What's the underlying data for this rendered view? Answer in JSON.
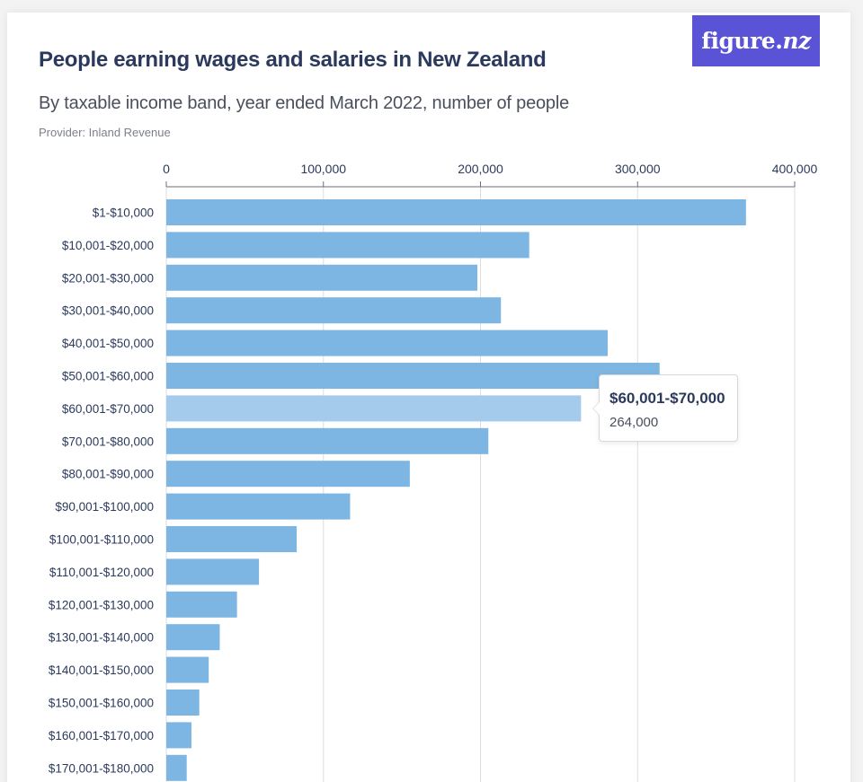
{
  "header": {
    "title": "People earning wages and salaries in New Zealand",
    "subtitle": "By taxable income band, year ended March 2022, number of people",
    "provider": "Provider: Inland Revenue"
  },
  "logo": {
    "text_main": "figure.",
    "text_italic": "nz"
  },
  "colors": {
    "bar": "#7db5e3",
    "bar_highlight": "#a5cbec",
    "axis": "#6b6f7a",
    "grid": "#dcdde1",
    "logo_bg": "#5a53d6",
    "text": "#2b3a5c"
  },
  "tooltip": {
    "category": "$60,001-$70,000",
    "value": "264,000"
  },
  "chart_data": {
    "type": "bar",
    "orientation": "horizontal",
    "title": "People earning wages and salaries in New Zealand",
    "subtitle": "By taxable income band, year ended March 2022, number of people",
    "xlim": [
      0,
      400000
    ],
    "ticks": [
      0,
      100000,
      200000,
      300000,
      400000
    ],
    "tick_labels": [
      "0",
      "100,000",
      "200,000",
      "300,000",
      "400,000"
    ],
    "grid": true,
    "highlight_index": 6,
    "categories": [
      "$1-$10,000",
      "$10,001-$20,000",
      "$20,001-$30,000",
      "$30,001-$40,000",
      "$40,001-$50,000",
      "$50,001-$60,000",
      "$60,001-$70,000",
      "$70,001-$80,000",
      "$80,001-$90,000",
      "$90,001-$100,000",
      "$100,001-$110,000",
      "$110,001-$120,000",
      "$120,001-$130,000",
      "$130,001-$140,000",
      "$140,001-$150,000",
      "$150,001-$160,000",
      "$160,001-$170,000",
      "$170,001-$180,000"
    ],
    "values": [
      369000,
      231000,
      198000,
      213000,
      281000,
      314000,
      264000,
      205000,
      155000,
      117000,
      83000,
      59000,
      45000,
      34000,
      27000,
      21000,
      16000,
      13000
    ]
  }
}
